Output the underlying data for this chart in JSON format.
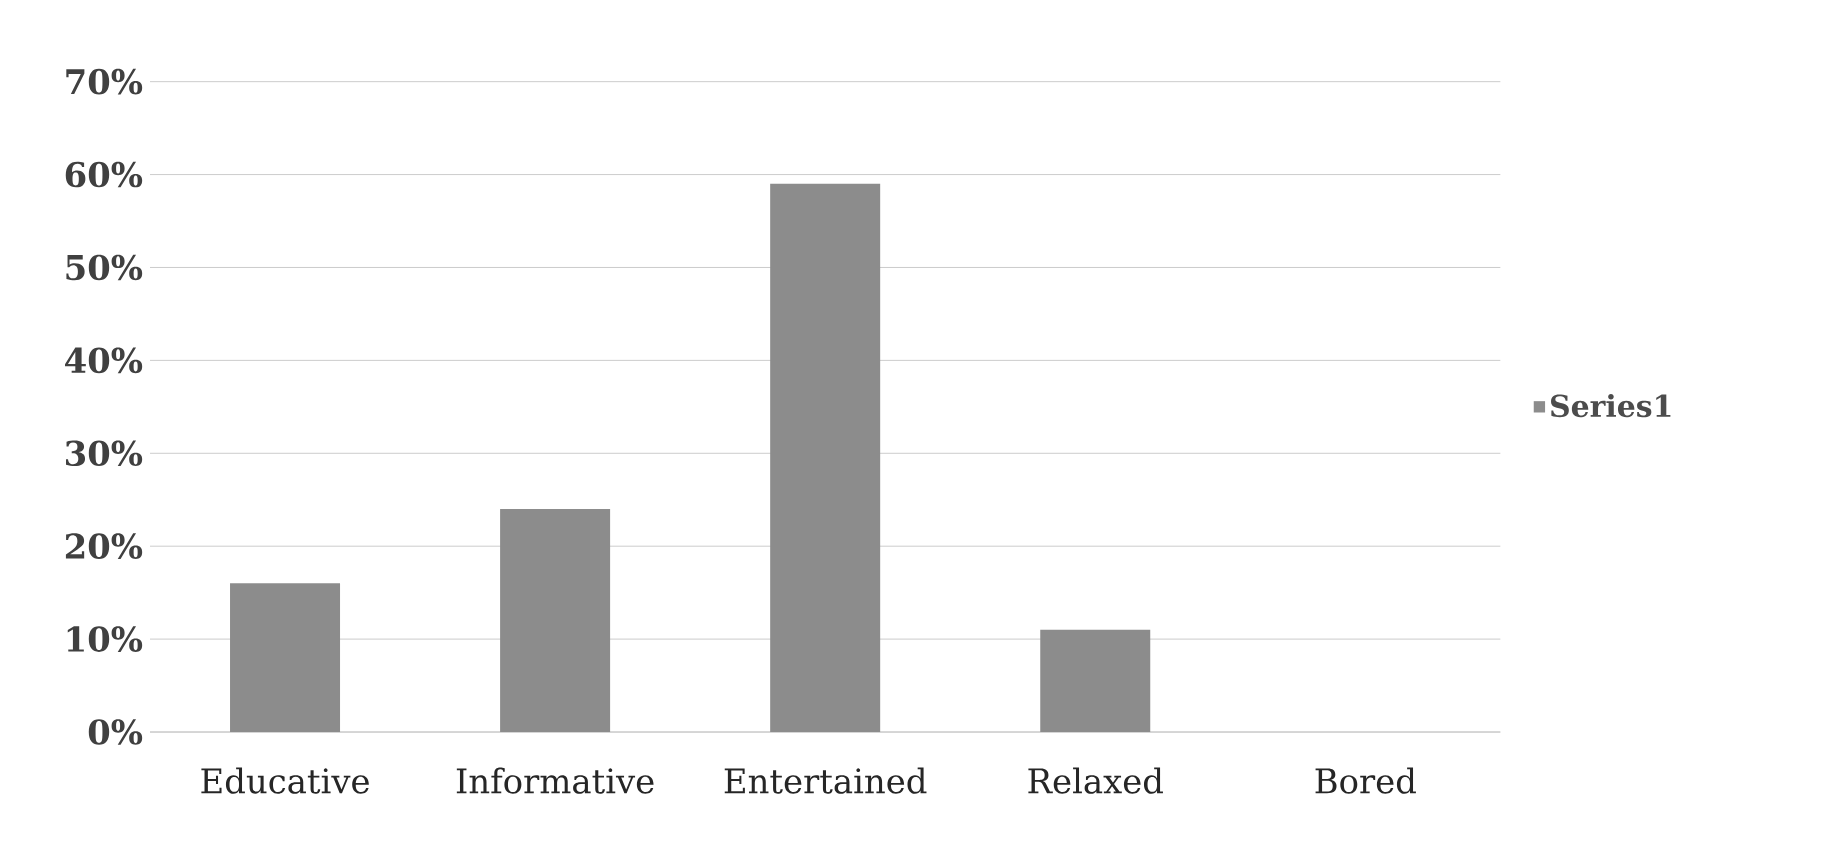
{
  "chart_data": {
    "type": "bar",
    "categories": [
      "Educative",
      "Informative",
      "Entertained",
      "Relaxed",
      "Bored"
    ],
    "series": [
      {
        "name": "Series1",
        "color": "#8c8c8c",
        "values": [
          16,
          24,
          59,
          11,
          0
        ]
      }
    ],
    "ylim": [
      0,
      70
    ],
    "yticks": [
      {
        "value": 0,
        "label": "0%"
      },
      {
        "value": 10,
        "label": "10%"
      },
      {
        "value": 20,
        "label": "20%"
      },
      {
        "value": 30,
        "label": "30%"
      },
      {
        "value": 40,
        "label": "40%"
      },
      {
        "value": 50,
        "label": "50%"
      },
      {
        "value": 60,
        "label": "60%"
      },
      {
        "value": 70,
        "label": "70%"
      }
    ],
    "grid": "y",
    "legend": "right"
  }
}
